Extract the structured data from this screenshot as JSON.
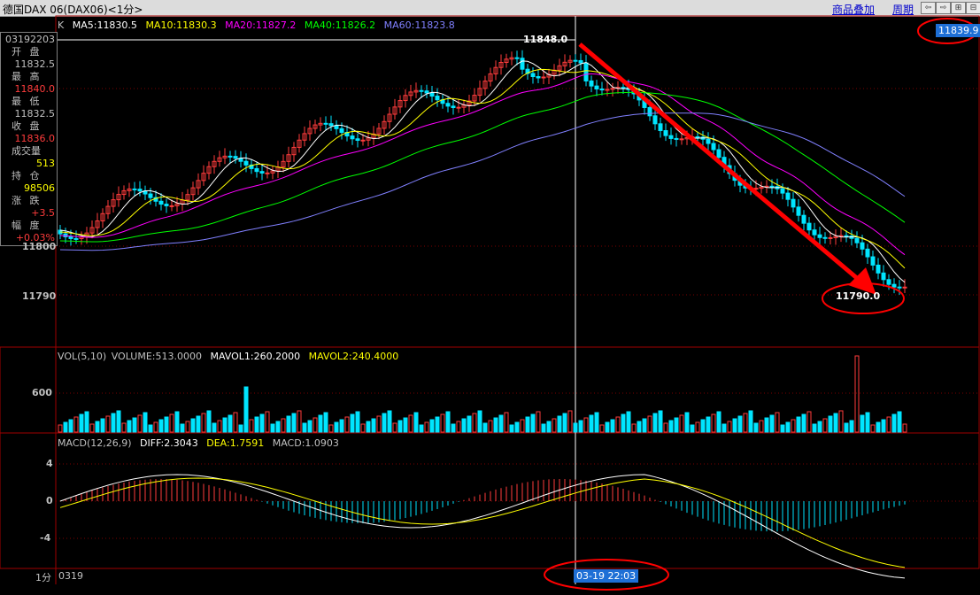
{
  "window": {
    "title": "德国DAX 06(DAX06)<1分>",
    "menu_overlay": "商品叠加",
    "menu_period": "周期"
  },
  "top_price": "11839.9",
  "info_panel": {
    "time": "03192203",
    "open_label": "开 盘",
    "open": "11832.5",
    "high_label": "最 高",
    "high": "11840.0",
    "low_label": "最 低",
    "low": "11832.5",
    "close_label": "收 盘",
    "close": "11836.0",
    "volume_label": "成交量",
    "volume": "513",
    "position_label": "持 仓",
    "position": "98506",
    "change_label": "涨 跌",
    "change": "+3.5",
    "pct_label": "幅 度",
    "pct": "+0.03%"
  },
  "main_chart": {
    "k_label": "K",
    "ma5": "MA5:11830.5",
    "ma10": "MA10:11830.3",
    "ma20": "MA20:11827.2",
    "ma40": "MA40:11826.2",
    "ma60": "MA60:11823.8",
    "price_ticks": [
      "11800",
      "11790"
    ],
    "high_marker": "11848.0",
    "low_marker": "11790.0"
  },
  "volume_chart": {
    "vol_label": "VOL(5,10)",
    "volume": "VOLUME:513.0000",
    "mavol1": "MAVOL1:260.2000",
    "mavol2": "MAVOL2:240.4000",
    "tick": "600"
  },
  "macd_chart": {
    "label": "MACD(12,26,9)",
    "diff": "DIFF:2.3043",
    "dea": "DEA:1.7591",
    "macd": "MACD:1.0903",
    "ticks": [
      "4",
      "0",
      "-4"
    ]
  },
  "status": {
    "period": "1分",
    "date_start": "0319",
    "cursor_time": "03-19 22:03"
  },
  "colors": {
    "up": "#ff3c3c",
    "down": "#00e5ff",
    "ma5": "#ffffff",
    "ma10": "#ffff00",
    "ma20": "#ff00ff",
    "ma40": "#00ff00",
    "ma60": "#8080ff",
    "annotation": "#ff0000"
  }
}
